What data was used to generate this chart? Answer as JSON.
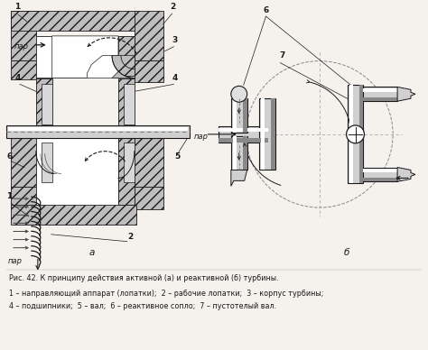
{
  "caption_line1": "Рис. 42. К принципу действия активной (а) и реактивной (б) турбины.",
  "caption_line2": "1 – направляющий аппарат (лопатки);  2 – рабочие лопатки;  3 – корпус турбины;",
  "caption_line3": "4 – подшипники;  5 – вал;  6 – реактивное сопло;  7 – пустотелый вал.",
  "label_a": "а",
  "label_b": "б",
  "bg_color": "#f5f2ee",
  "lc": "#1a1a1a",
  "hatch_color": "#b8b8b8",
  "shaft_color": "#d0d0d0",
  "gray_mid": "#a0a0a0"
}
